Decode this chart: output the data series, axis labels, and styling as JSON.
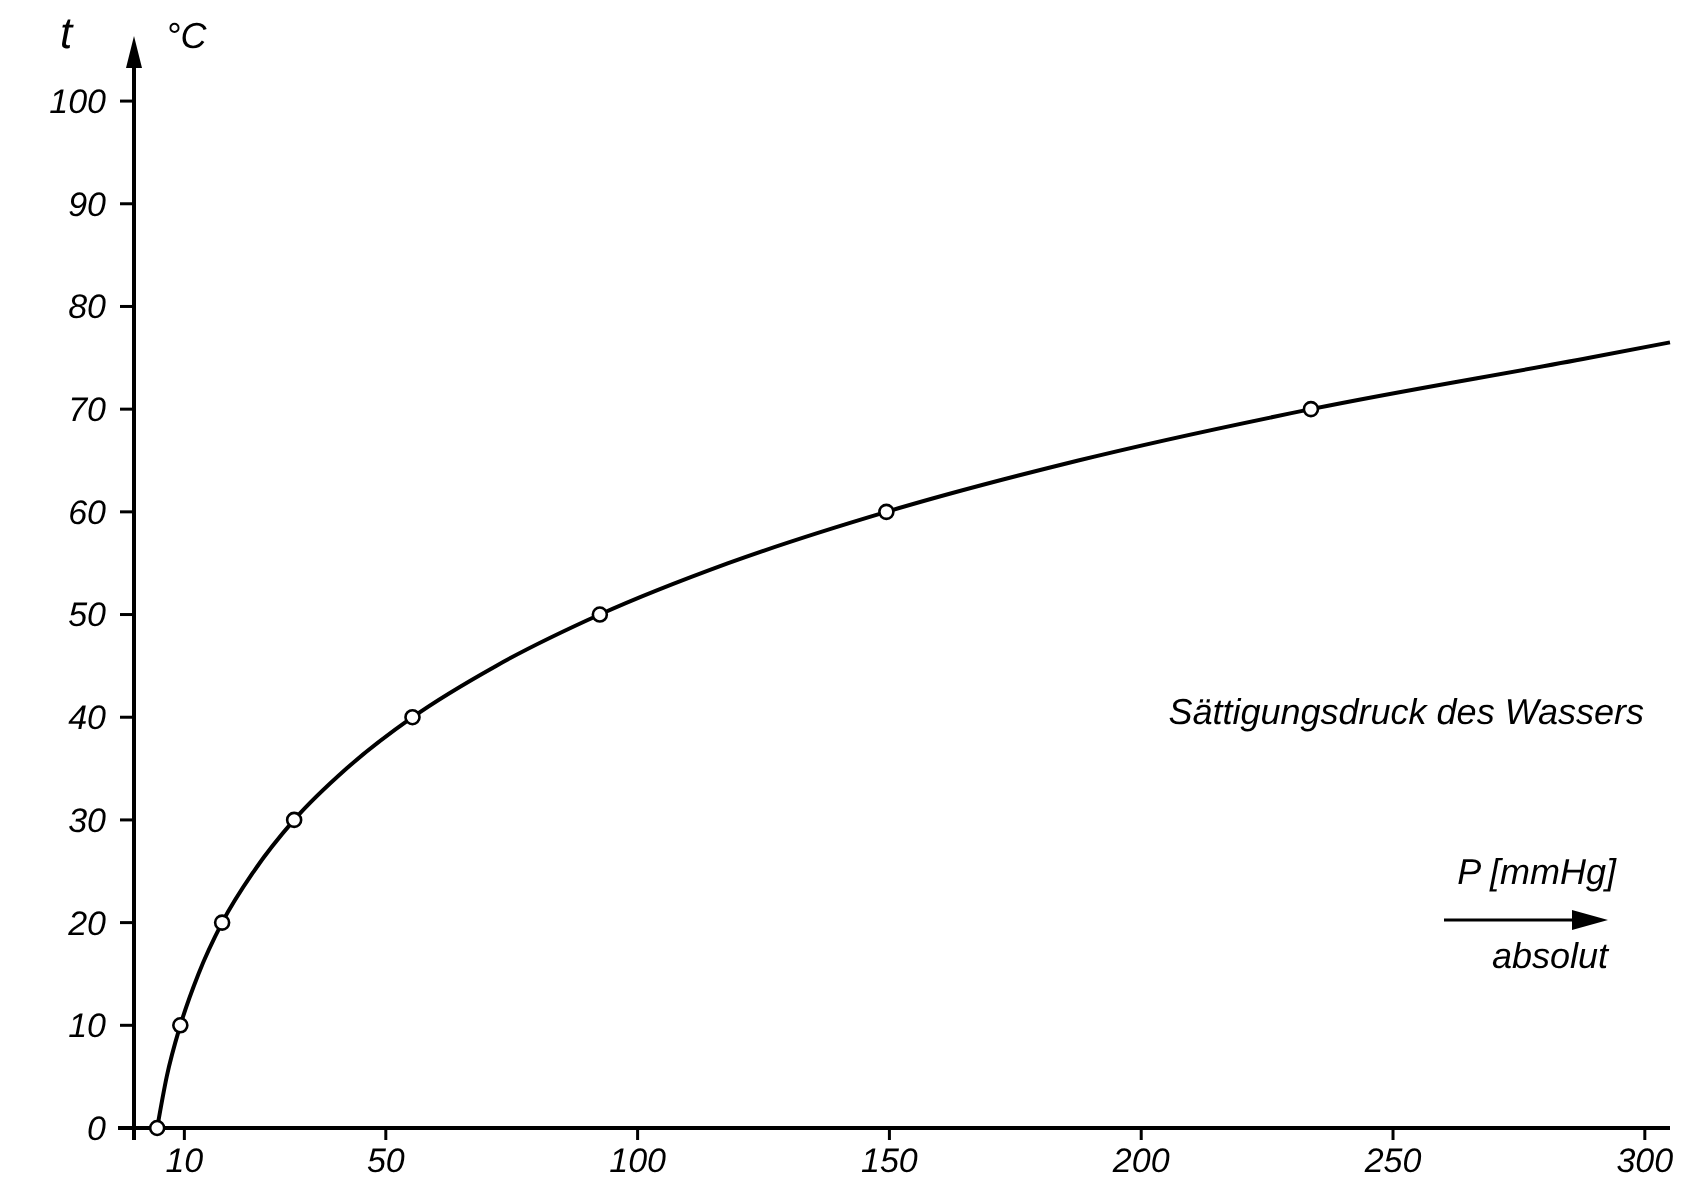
{
  "chart_data": {
    "type": "line",
    "ylabel": "t",
    "xlabel": "P [mmHg]",
    "annotations": [
      "°C",
      "absolut",
      "Sättigungsdruck des Wassers"
    ],
    "xlim": [
      0,
      305
    ],
    "ylim": [
      0,
      104
    ],
    "xticks": [
      10,
      50,
      100,
      150,
      200,
      250,
      300
    ],
    "yticks": [
      0,
      10,
      20,
      30,
      40,
      50,
      60,
      70,
      80,
      90,
      100
    ],
    "grid": false,
    "series": [
      {
        "color": "#000000",
        "marker": "none",
        "x": [
          4.6,
          6.5,
          9.2,
          12.8,
          17.5,
          23.8,
          31.8,
          42.2,
          55.3,
          71.9,
          92.5,
          118,
          149.4,
          187.5,
          233.7,
          289,
          305
        ],
        "values": [
          0,
          5,
          10,
          15,
          20,
          25,
          30,
          35,
          40,
          45,
          50,
          55,
          60,
          65,
          70,
          75,
          76.5
        ]
      },
      {
        "type": "scatter",
        "color": "#000000",
        "marker": "circle",
        "x": [
          4.6,
          9.2,
          17.5,
          31.8,
          55.3,
          92.5,
          149.4,
          233.7
        ],
        "values": [
          0,
          10,
          20,
          30,
          40,
          50,
          60,
          70
        ]
      }
    ]
  }
}
